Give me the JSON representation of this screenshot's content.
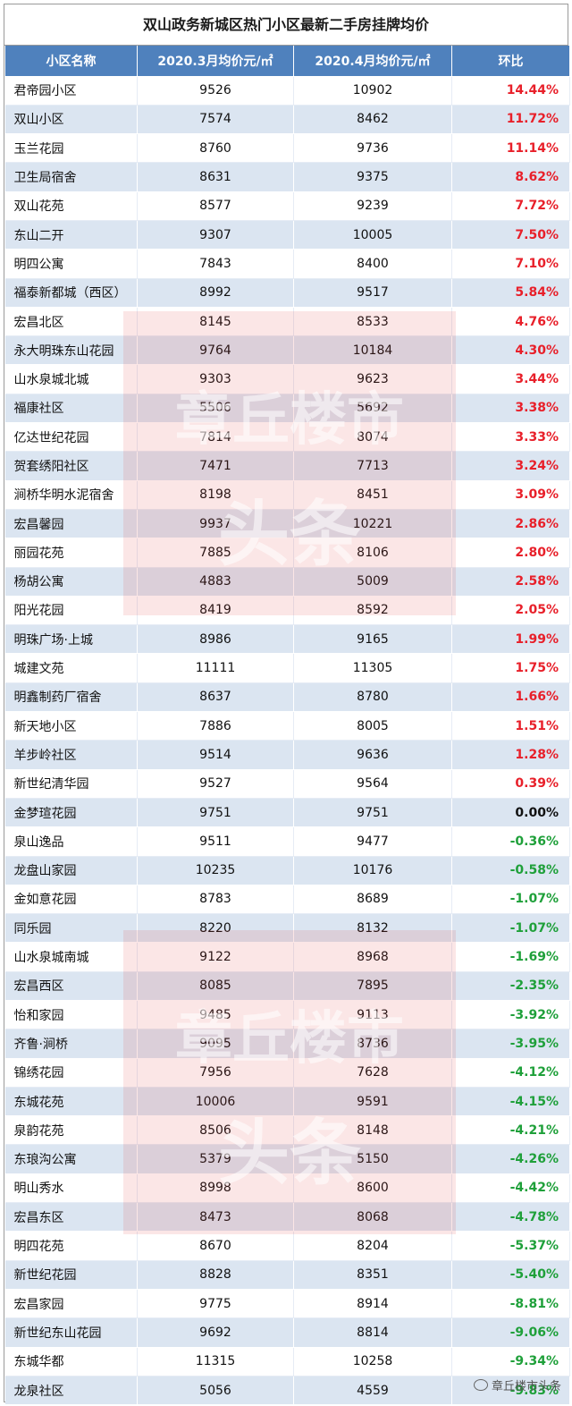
{
  "title": "双山政务新城区热门小区最新二手房挂牌均价",
  "headers": [
    "小区名称",
    "2020.3月均价元/㎡",
    "2020.4月均价元/㎡",
    "环比"
  ],
  "rows": [
    {
      "name": "君帝园小区",
      "mar": "9526",
      "apr": "10902",
      "chg": "14.44%",
      "dir": "up"
    },
    {
      "name": "双山小区",
      "mar": "7574",
      "apr": "8462",
      "chg": "11.72%",
      "dir": "up"
    },
    {
      "name": "玉兰花园",
      "mar": "8760",
      "apr": "9736",
      "chg": "11.14%",
      "dir": "up"
    },
    {
      "name": "卫生局宿舍",
      "mar": "8631",
      "apr": "9375",
      "chg": "8.62%",
      "dir": "up"
    },
    {
      "name": "双山花苑",
      "mar": "8577",
      "apr": "9239",
      "chg": "7.72%",
      "dir": "up"
    },
    {
      "name": "东山二开",
      "mar": "9307",
      "apr": "10005",
      "chg": "7.50%",
      "dir": "up"
    },
    {
      "name": "明四公寓",
      "mar": "7843",
      "apr": "8400",
      "chg": "7.10%",
      "dir": "up"
    },
    {
      "name": "福泰新都城（西区）",
      "mar": "8992",
      "apr": "9517",
      "chg": "5.84%",
      "dir": "up"
    },
    {
      "name": "宏昌北区",
      "mar": "8145",
      "apr": "8533",
      "chg": "4.76%",
      "dir": "up"
    },
    {
      "name": "永大明珠东山花园",
      "mar": "9764",
      "apr": "10184",
      "chg": "4.30%",
      "dir": "up"
    },
    {
      "name": "山水泉城北城",
      "mar": "9303",
      "apr": "9623",
      "chg": "3.44%",
      "dir": "up"
    },
    {
      "name": "福康社区",
      "mar": "5506",
      "apr": "5692",
      "chg": "3.38%",
      "dir": "up"
    },
    {
      "name": "亿达世纪花园",
      "mar": "7814",
      "apr": "8074",
      "chg": "3.33%",
      "dir": "up"
    },
    {
      "name": "贺套绣阳社区",
      "mar": "7471",
      "apr": "7713",
      "chg": "3.24%",
      "dir": "up"
    },
    {
      "name": "涧桥华明水泥宿舍",
      "mar": "8198",
      "apr": "8451",
      "chg": "3.09%",
      "dir": "up"
    },
    {
      "name": "宏昌馨园",
      "mar": "9937",
      "apr": "10221",
      "chg": "2.86%",
      "dir": "up"
    },
    {
      "name": "丽园花苑",
      "mar": "7885",
      "apr": "8106",
      "chg": "2.80%",
      "dir": "up"
    },
    {
      "name": "杨胡公寓",
      "mar": "4883",
      "apr": "5009",
      "chg": "2.58%",
      "dir": "up"
    },
    {
      "name": "阳光花园",
      "mar": "8419",
      "apr": "8592",
      "chg": "2.05%",
      "dir": "up"
    },
    {
      "name": "明珠广场·上城",
      "mar": "8986",
      "apr": "9165",
      "chg": "1.99%",
      "dir": "up"
    },
    {
      "name": "城建文苑",
      "mar": "11111",
      "apr": "11305",
      "chg": "1.75%",
      "dir": "up"
    },
    {
      "name": "明鑫制药厂宿舍",
      "mar": "8637",
      "apr": "8780",
      "chg": "1.66%",
      "dir": "up"
    },
    {
      "name": "新天地小区",
      "mar": "7886",
      "apr": "8005",
      "chg": "1.51%",
      "dir": "up"
    },
    {
      "name": "羊步岭社区",
      "mar": "9514",
      "apr": "9636",
      "chg": "1.28%",
      "dir": "up"
    },
    {
      "name": "新世纪清华园",
      "mar": "9527",
      "apr": "9564",
      "chg": "0.39%",
      "dir": "up"
    },
    {
      "name": "金梦瑄花园",
      "mar": "9751",
      "apr": "9751",
      "chg": "0.00%",
      "dir": "zero"
    },
    {
      "name": "泉山逸品",
      "mar": "9511",
      "apr": "9477",
      "chg": "-0.36%",
      "dir": "down"
    },
    {
      "name": "龙盘山家园",
      "mar": "10235",
      "apr": "10176",
      "chg": "-0.58%",
      "dir": "down"
    },
    {
      "name": "金如意花园",
      "mar": "8783",
      "apr": "8689",
      "chg": "-1.07%",
      "dir": "down"
    },
    {
      "name": "同乐园",
      "mar": "8220",
      "apr": "8132",
      "chg": "-1.07%",
      "dir": "down"
    },
    {
      "name": "山水泉城南城",
      "mar": "9122",
      "apr": "8968",
      "chg": "-1.69%",
      "dir": "down"
    },
    {
      "name": "宏昌西区",
      "mar": "8085",
      "apr": "7895",
      "chg": "-2.35%",
      "dir": "down"
    },
    {
      "name": "怡和家园",
      "mar": "9485",
      "apr": "9113",
      "chg": "-3.92%",
      "dir": "down"
    },
    {
      "name": "齐鲁·涧桥",
      "mar": "9095",
      "apr": "8736",
      "chg": "-3.95%",
      "dir": "down"
    },
    {
      "name": "锦绣花园",
      "mar": "7956",
      "apr": "7628",
      "chg": "-4.12%",
      "dir": "down"
    },
    {
      "name": "东城花苑",
      "mar": "10006",
      "apr": "9591",
      "chg": "-4.15%",
      "dir": "down"
    },
    {
      "name": "泉韵花苑",
      "mar": "8506",
      "apr": "8148",
      "chg": "-4.21%",
      "dir": "down"
    },
    {
      "name": "东琅沟公寓",
      "mar": "5379",
      "apr": "5150",
      "chg": "-4.26%",
      "dir": "down"
    },
    {
      "name": "明山秀水",
      "mar": "8998",
      "apr": "8600",
      "chg": "-4.42%",
      "dir": "down"
    },
    {
      "name": "宏昌东区",
      "mar": "8473",
      "apr": "8068",
      "chg": "-4.78%",
      "dir": "down"
    },
    {
      "name": "明四花苑",
      "mar": "8670",
      "apr": "8204",
      "chg": "-5.37%",
      "dir": "down"
    },
    {
      "name": "新世纪花园",
      "mar": "8828",
      "apr": "8351",
      "chg": "-5.40%",
      "dir": "down"
    },
    {
      "name": "宏昌家园",
      "mar": "9775",
      "apr": "8914",
      "chg": "-8.81%",
      "dir": "down"
    },
    {
      "name": "新世纪东山花园",
      "mar": "9692",
      "apr": "8814",
      "chg": "-9.06%",
      "dir": "down"
    },
    {
      "name": "东城华都",
      "mar": "11315",
      "apr": "10258",
      "chg": "-9.34%",
      "dir": "down"
    },
    {
      "name": "龙泉社区",
      "mar": "5056",
      "apr": "4559",
      "chg": "-9.83%",
      "dir": "down"
    }
  ],
  "watermark": {
    "line1": "章丘楼市",
    "line2": "头条"
  },
  "source_mark": "章丘楼市头条",
  "colors": {
    "header_bg": "#4f81bd",
    "stripe": "#dbe5f1",
    "up": "#e8202a",
    "down": "#1fa03a"
  }
}
